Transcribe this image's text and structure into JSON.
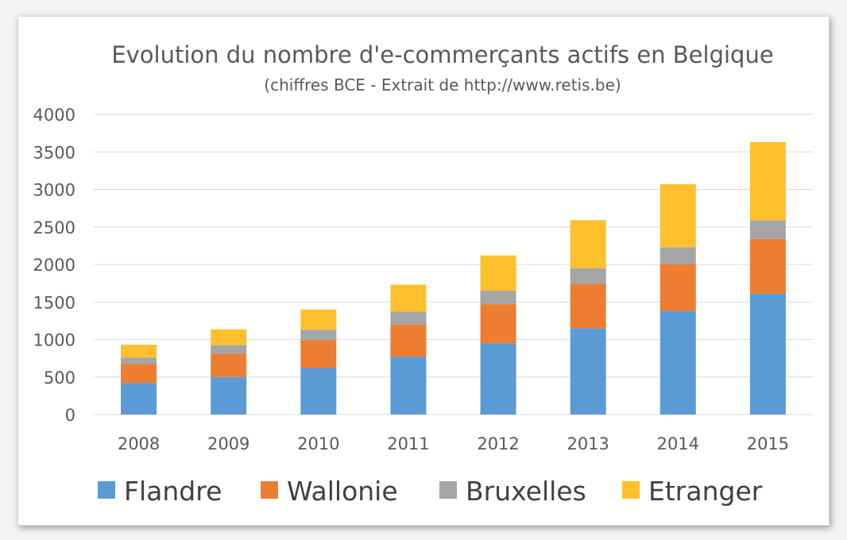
{
  "chart_data": {
    "type": "bar",
    "stacked": true,
    "title": "Evolution du nombre d'e-commerçants actifs en Belgique",
    "subtitle": "(chiffres BCE - Extrait de http://www.retis.be)",
    "categories": [
      "2008",
      "2009",
      "2010",
      "2011",
      "2012",
      "2013",
      "2014",
      "2015"
    ],
    "series": [
      {
        "name": "Flandre",
        "color": "#5b9bd5",
        "values": [
          420,
          500,
          620,
          770,
          950,
          1150,
          1380,
          1610
        ]
      },
      {
        "name": "Wallonie",
        "color": "#ed7d31",
        "values": [
          255,
          310,
          370,
          430,
          520,
          590,
          620,
          730
        ]
      },
      {
        "name": "Bruxelles",
        "color": "#a5a5a5",
        "values": [
          85,
          115,
          140,
          170,
          180,
          210,
          230,
          250
        ]
      },
      {
        "name": "Etranger",
        "color": "#ffc02d",
        "values": [
          170,
          210,
          270,
          360,
          470,
          640,
          840,
          1040
        ]
      }
    ],
    "ylim": [
      0,
      4000
    ],
    "yticks": [
      "0",
      "500",
      "1000",
      "1500",
      "2000",
      "2500",
      "3000",
      "3500",
      "4000"
    ],
    "grid": true,
    "legend_position": "bottom"
  }
}
